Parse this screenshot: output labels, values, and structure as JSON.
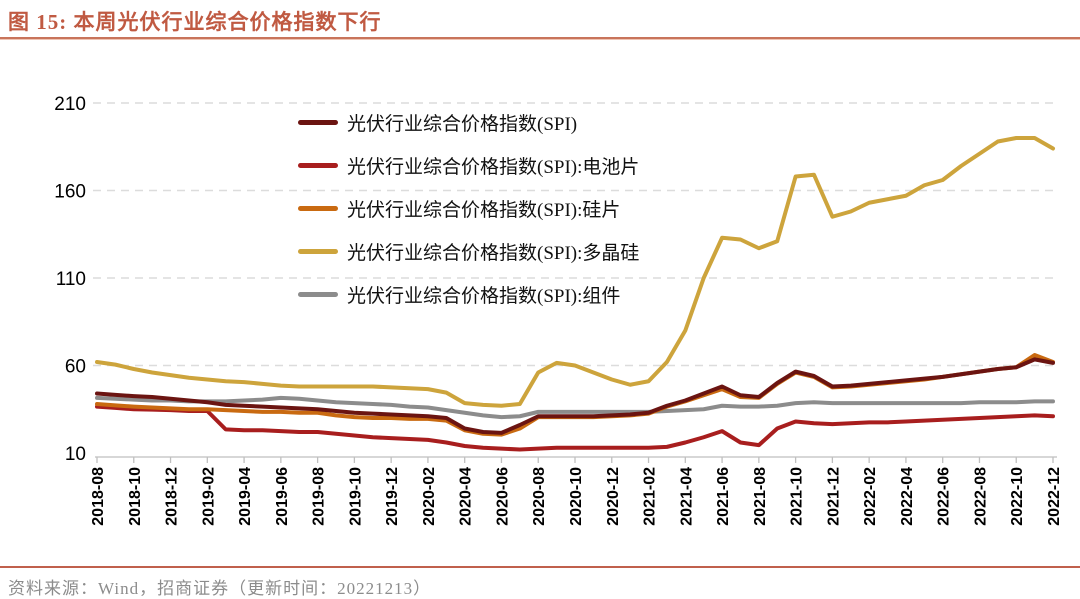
{
  "header": {
    "title": "图 15:  本周光伏行业综合价格指数下行"
  },
  "footer": {
    "source": "资料来源：Wind，招商证券（更新时间：20221213）"
  },
  "colors": {
    "accent_rule": "#C8745B",
    "grid": "#DCDCDC",
    "axis": "#BFBFBF",
    "tick_text": "#000000",
    "footer_text": "#8C8C8C"
  },
  "chart_data": {
    "type": "line",
    "title": "本周光伏行业综合价格指数下行",
    "xlabel": "",
    "ylabel": "",
    "ylim": [
      10,
      210
    ],
    "yticks": [
      10,
      60,
      110,
      160,
      210
    ],
    "grid": "horizontal-dashed",
    "legend_position": "top-center-vertical",
    "x": [
      "2018-08",
      "2018-09",
      "2018-10",
      "2018-11",
      "2018-12",
      "2019-01",
      "2019-02",
      "2019-03",
      "2019-04",
      "2019-05",
      "2019-06",
      "2019-07",
      "2019-08",
      "2019-09",
      "2019-10",
      "2019-11",
      "2019-12",
      "2020-01",
      "2020-02",
      "2020-03",
      "2020-04",
      "2020-05",
      "2020-06",
      "2020-07",
      "2020-08",
      "2020-09",
      "2020-10",
      "2020-11",
      "2020-12",
      "2021-01",
      "2021-02",
      "2021-03",
      "2021-04",
      "2021-05",
      "2021-06",
      "2021-07",
      "2021-08",
      "2021-09",
      "2021-10",
      "2021-11",
      "2021-12",
      "2022-01",
      "2022-02",
      "2022-03",
      "2022-04",
      "2022-05",
      "2022-06",
      "2022-07",
      "2022-08",
      "2022-09",
      "2022-10",
      "2022-11",
      "2022-12"
    ],
    "draw_order": [
      4,
      3,
      1,
      2,
      0
    ],
    "series": [
      {
        "name": "光伏行业综合价格指数(SPI)",
        "color": "#6B1411",
        "values": [
          44,
          43.2,
          42.5,
          42,
          41,
          40,
          39,
          37.5,
          37,
          36.5,
          36,
          35.5,
          35,
          34,
          33,
          32.5,
          32,
          31.5,
          31,
          30,
          24,
          22,
          21.5,
          26,
          31,
          31,
          31,
          31,
          31.5,
          32,
          33,
          37,
          40,
          44,
          48,
          43,
          42,
          50,
          56.5,
          54,
          48,
          48.5,
          49.5,
          50.5,
          51.5,
          52.5,
          53.5,
          55,
          56.5,
          58,
          59,
          63.5,
          61.5
        ]
      },
      {
        "name": "光伏行业综合价格指数(SPI):电池片",
        "color": "#A81E1E",
        "values": [
          36.5,
          35.8,
          35,
          34.8,
          34.5,
          34,
          34,
          23.5,
          23,
          23,
          22.5,
          22,
          22,
          21,
          20,
          19,
          18.5,
          18,
          17.5,
          16,
          14,
          13,
          12.5,
          12,
          12.5,
          13,
          13,
          13,
          13,
          13,
          13,
          13.5,
          16,
          19,
          22.5,
          16,
          14.5,
          24,
          28,
          27,
          26.5,
          27,
          27.5,
          27.5,
          28,
          28.5,
          29,
          29.5,
          30,
          30.5,
          31,
          31.5,
          31
        ]
      },
      {
        "name": "光伏行业综合价格指数(SPI):硅片",
        "color": "#C96A11",
        "values": [
          38,
          37.2,
          36.5,
          36,
          35.5,
          35,
          35,
          34.5,
          34,
          33.5,
          33.5,
          33,
          33,
          31.5,
          30.5,
          30,
          30,
          29.5,
          29.5,
          28.5,
          23,
          21,
          20.5,
          24,
          30.5,
          30.5,
          30.5,
          30.5,
          31,
          31.5,
          32.5,
          36.5,
          39.5,
          43,
          46.5,
          42,
          41.5,
          49.5,
          56,
          53.5,
          47.5,
          48,
          49,
          50,
          51,
          52,
          53.5,
          55,
          56.5,
          58,
          59,
          66,
          62
        ]
      },
      {
        "name": "光伏行业综合价格指数(SPI):多晶硅",
        "color": "#CDA43C",
        "values": [
          62,
          60.5,
          58,
          56,
          54.5,
          53,
          52,
          51,
          50.5,
          49.5,
          48.5,
          48,
          48,
          48,
          48,
          48,
          47.5,
          47,
          46.5,
          44.5,
          38.5,
          37.5,
          37,
          38,
          56,
          61.5,
          60,
          56,
          52,
          49,
          51,
          62,
          80,
          110,
          133,
          132,
          127,
          131,
          168,
          169,
          145,
          148,
          153,
          155,
          157,
          163,
          166,
          174,
          181,
          188,
          190,
          190,
          184
        ]
      },
      {
        "name": "光伏行业综合价格指数(SPI):组件",
        "color": "#8C8C8C",
        "values": [
          41.5,
          41,
          40.5,
          40,
          40,
          39.5,
          39.5,
          39.5,
          40,
          40.5,
          41.5,
          41,
          40,
          39,
          38.5,
          38,
          37.5,
          36.5,
          36,
          34.5,
          33,
          31.5,
          30.5,
          31,
          33.5,
          33.5,
          33.5,
          33.5,
          33.5,
          33.5,
          33.5,
          34,
          34.5,
          35,
          37,
          36.5,
          36.5,
          37,
          38.5,
          39,
          38.5,
          38.5,
          38.5,
          38.5,
          38.5,
          38.5,
          38.5,
          38.5,
          39,
          39,
          39,
          39.5,
          39.5
        ]
      }
    ]
  }
}
